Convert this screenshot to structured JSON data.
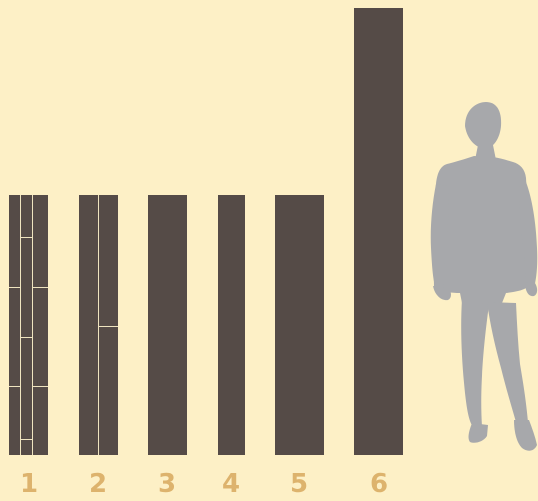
{
  "colors": {
    "background": "#fdf0c6",
    "panel": "#554b47",
    "seam": "#efe4c0",
    "label": "#ddb36d",
    "silhouette": "#a7a8ab"
  },
  "panels": [
    {
      "label": "1",
      "pattern": "split-lattice"
    },
    {
      "label": "2",
      "pattern": "two-strip"
    },
    {
      "label": "3",
      "pattern": "solid"
    },
    {
      "label": "4",
      "pattern": "solid"
    },
    {
      "label": "5",
      "pattern": "solid"
    },
    {
      "label": "6",
      "pattern": "solid-tall"
    }
  ],
  "figure": {
    "icon": "human-scale-silhouette"
  }
}
